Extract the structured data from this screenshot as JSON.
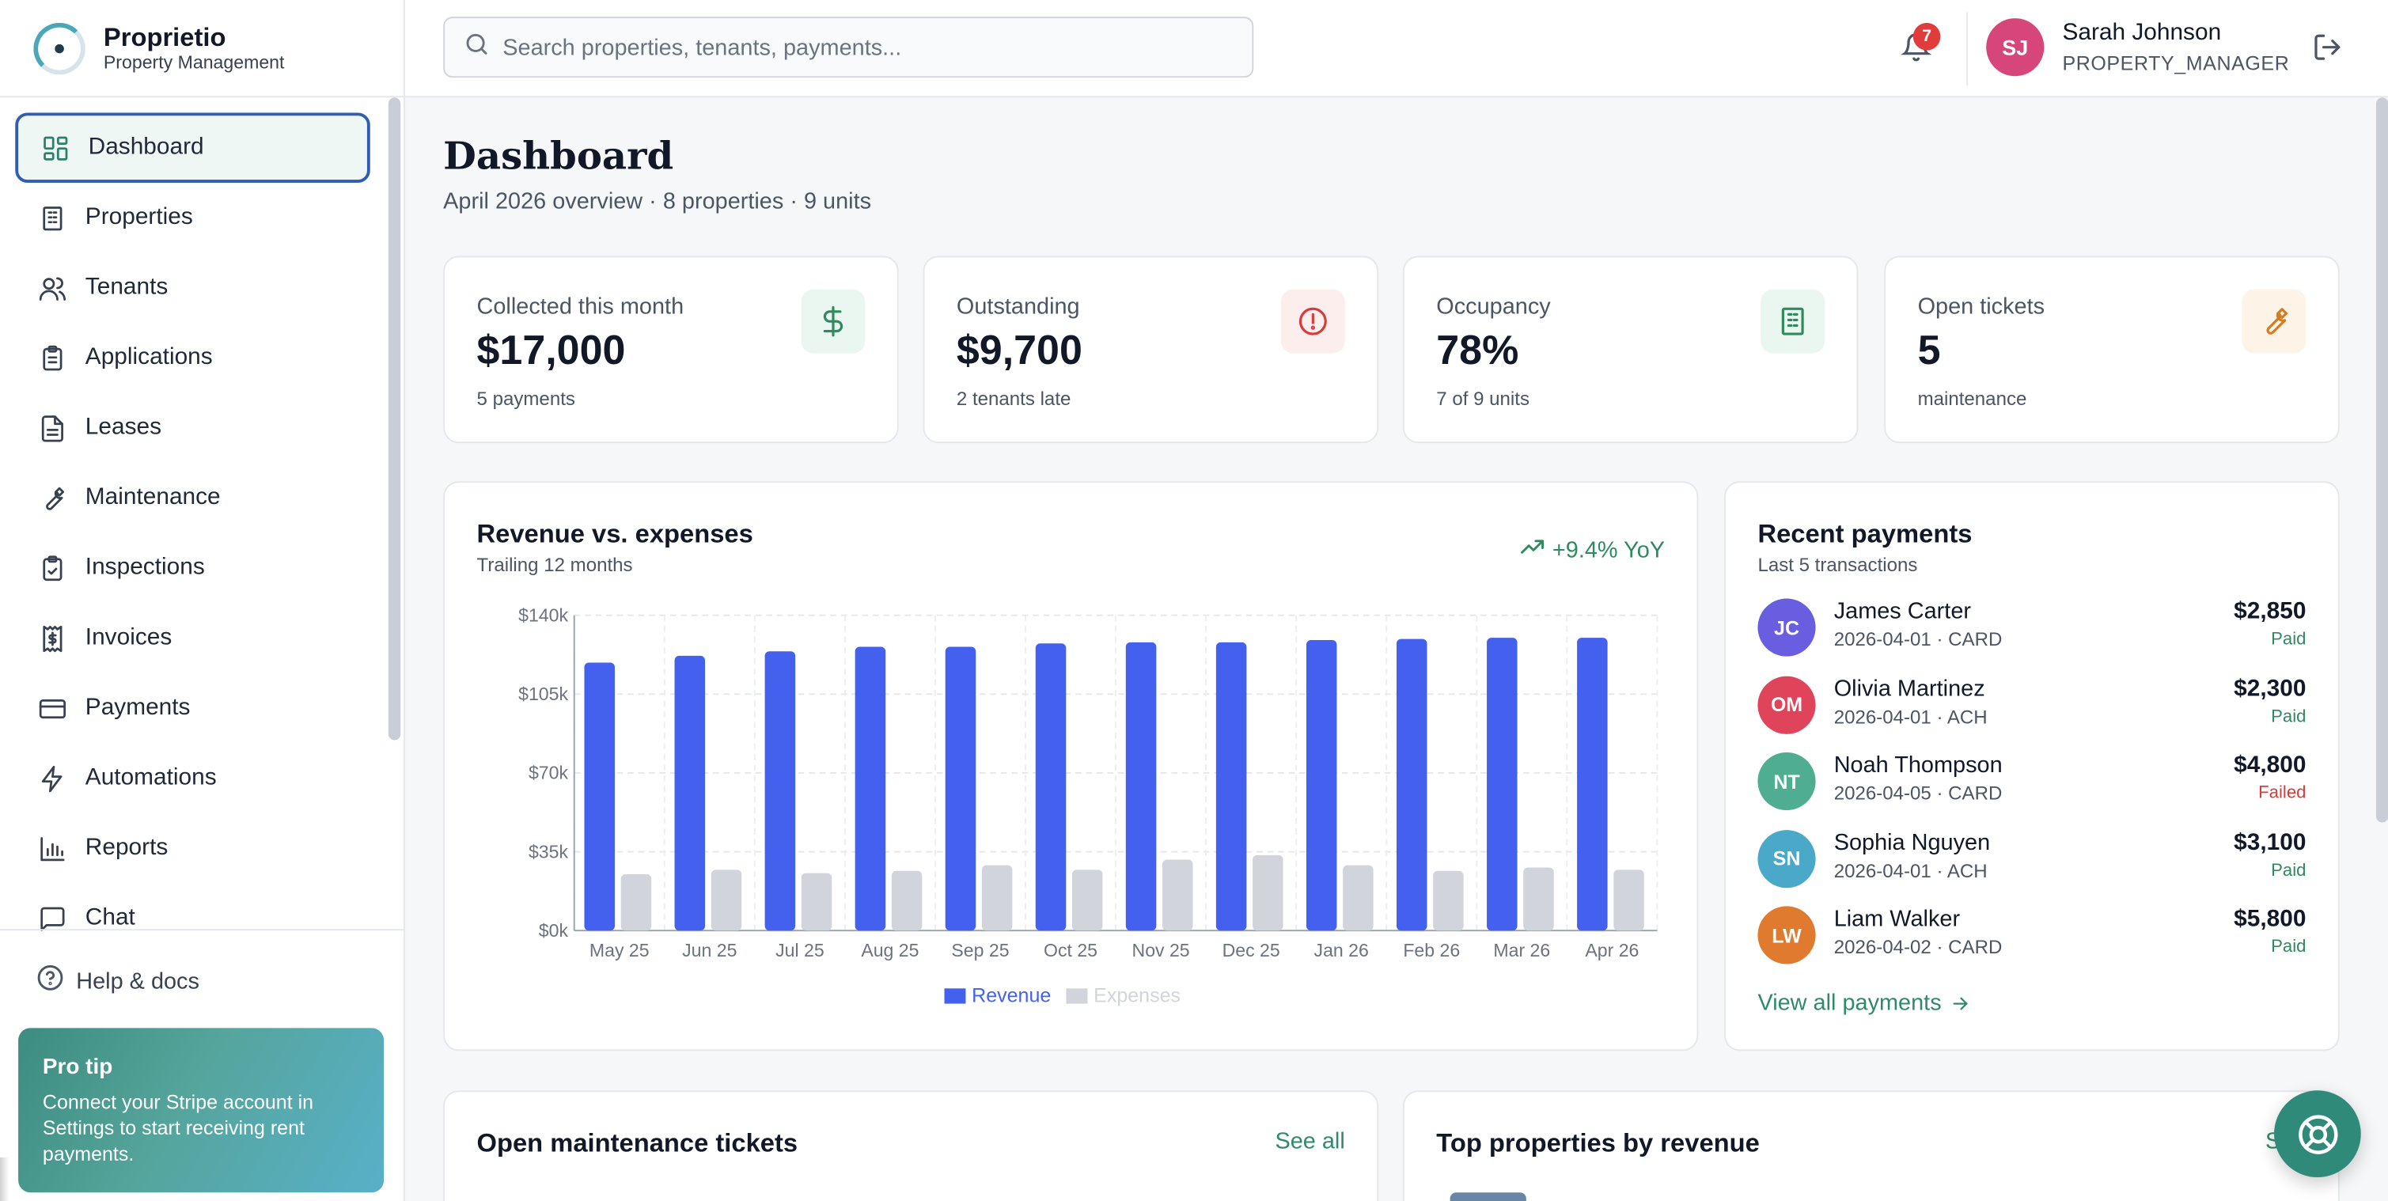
{
  "brand": {
    "name": "Proprietio",
    "subtitle": "Property Management"
  },
  "nav": {
    "items": [
      {
        "label": "Dashboard",
        "icon": "grid-icon",
        "active": true
      },
      {
        "label": "Properties",
        "icon": "building-icon"
      },
      {
        "label": "Tenants",
        "icon": "users-icon"
      },
      {
        "label": "Applications",
        "icon": "clipboard-icon"
      },
      {
        "label": "Leases",
        "icon": "document-icon"
      },
      {
        "label": "Maintenance",
        "icon": "wrench-icon"
      },
      {
        "label": "Inspections",
        "icon": "clipboard-check-icon"
      },
      {
        "label": "Invoices",
        "icon": "receipt-icon"
      },
      {
        "label": "Payments",
        "icon": "credit-card-icon"
      },
      {
        "label": "Automations",
        "icon": "bolt-icon"
      },
      {
        "label": "Reports",
        "icon": "bar-chart-icon"
      },
      {
        "label": "Chat",
        "icon": "chat-icon"
      }
    ],
    "help_label": "Help & docs"
  },
  "protip": {
    "title": "Pro tip",
    "text": "Connect your Stripe account in Settings to start receiving rent payments."
  },
  "topbar": {
    "search_placeholder": "Search properties, tenants, payments...",
    "notification_count": "7",
    "user": {
      "initials": "SJ",
      "name": "Sarah Johnson",
      "role": "PROPERTY_MANAGER"
    }
  },
  "page": {
    "title": "Dashboard",
    "subtitle": "April 2026 overview · 8 properties · 9 units"
  },
  "stats": [
    {
      "label": "Collected this month",
      "value": "$17,000",
      "sub": "5 payments",
      "icon": "dollar-icon",
      "color": "#2f8a5f",
      "bg": "#eaf6f0"
    },
    {
      "label": "Outstanding",
      "value": "$9,700",
      "sub": "2 tenants late",
      "icon": "alert-circle-icon",
      "color": "#d93a3a",
      "bg": "#fdeeee"
    },
    {
      "label": "Occupancy",
      "value": "78%",
      "sub": "7 of 9 units",
      "icon": "building-icon",
      "color": "#2f8a5f",
      "bg": "#eaf6f0"
    },
    {
      "label": "Open tickets",
      "value": "5",
      "sub": "maintenance",
      "icon": "wrench-icon",
      "color": "#d97a1e",
      "bg": "#fdf3e6"
    }
  ],
  "revenue_card": {
    "title": "Revenue vs. expenses",
    "subtitle": "Trailing 12 months",
    "yoy": "+9.4% YoY"
  },
  "chart_data": {
    "type": "bar",
    "categories": [
      "May 25",
      "Jun 25",
      "Jul 25",
      "Aug 25",
      "Sep 25",
      "Oct 25",
      "Nov 25",
      "Dec 25",
      "Jan 26",
      "Feb 26",
      "Mar 26",
      "Apr 26"
    ],
    "series": [
      {
        "name": "Revenue",
        "color": "#4361ee",
        "values": [
          119000,
          122000,
          124000,
          126000,
          126000,
          127500,
          128000,
          128000,
          129000,
          129500,
          130000,
          130000
        ]
      },
      {
        "name": "Expenses",
        "color": "#d1d5db",
        "values": [
          25000,
          27000,
          25500,
          26500,
          29000,
          27000,
          31500,
          33500,
          29000,
          26500,
          28000,
          27000
        ]
      }
    ],
    "yticks": [
      "$0k",
      "$35k",
      "$70k",
      "$105k",
      "$140k"
    ],
    "ylim": [
      0,
      140000
    ],
    "grid": true,
    "legend": "bottom"
  },
  "payments_card": {
    "title": "Recent payments",
    "subtitle": "Last 5 transactions",
    "view_all": "View all payments",
    "items": [
      {
        "initials": "JC",
        "name": "James Carter",
        "meta": "2026-04-01 · CARD",
        "amount": "$2,850",
        "status": "Paid",
        "color": "#6a5ee0"
      },
      {
        "initials": "OM",
        "name": "Olivia Martinez",
        "meta": "2026-04-01 · ACH",
        "amount": "$2,300",
        "status": "Paid",
        "color": "#e0445a"
      },
      {
        "initials": "NT",
        "name": "Noah Thompson",
        "meta": "2026-04-05 · CARD",
        "amount": "$4,800",
        "status": "Failed",
        "color": "#4fae92"
      },
      {
        "initials": "SN",
        "name": "Sophia Nguyen",
        "meta": "2026-04-01 · ACH",
        "amount": "$3,100",
        "status": "Paid",
        "color": "#4aa8c8"
      },
      {
        "initials": "LW",
        "name": "Liam Walker",
        "meta": "2026-04-02 · CARD",
        "amount": "$5,800",
        "status": "Paid",
        "color": "#e07a2e"
      }
    ]
  },
  "maintenance_card": {
    "title": "Open maintenance tickets",
    "see_all": "See all"
  },
  "top_properties_card": {
    "title": "Top properties by revenue",
    "see_all": "See"
  }
}
